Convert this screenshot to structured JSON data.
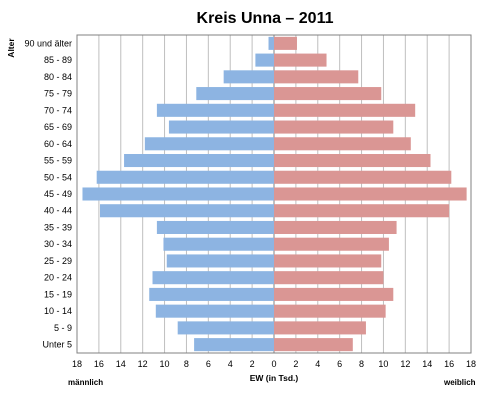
{
  "chart_data": {
    "type": "bar",
    "orientation": "horizontal",
    "subtype": "population-pyramid",
    "title": "Kreis Unna – 2011",
    "ylabel": "Alter",
    "xlabel": "EW (in Tsd.)",
    "left_label": "männlich",
    "right_label": "weiblich",
    "categories": [
      "Unter 5",
      "5 - 9",
      "10 - 14",
      "15 - 19",
      "20 - 24",
      "25 - 29",
      "30 - 34",
      "35 - 39",
      "40 - 44",
      "45 - 49",
      "50 - 54",
      "55 - 59",
      "60 - 64",
      "65 - 69",
      "70 - 74",
      "75 - 79",
      "80 - 84",
      "85 - 89",
      "90 und älter"
    ],
    "x_ticks": [
      "18",
      "16",
      "14",
      "12",
      "10",
      "8",
      "6",
      "4",
      "2",
      "0",
      "2",
      "4",
      "6",
      "8",
      "10",
      "12",
      "14",
      "16",
      "18"
    ],
    "xlim": [
      -18,
      18
    ],
    "grid": true,
    "colors": {
      "male": "#8db4e2",
      "female": "#da9694"
    },
    "series": [
      {
        "values": [
          7.3,
          8.8,
          10.8,
          11.4,
          11.1,
          9.8,
          10.1,
          10.7,
          15.9,
          17.5,
          16.2,
          13.7,
          11.8,
          9.6,
          10.7,
          7.1,
          4.6,
          1.7,
          0.5
        ]
      },
      {
        "values": [
          7.2,
          8.4,
          10.2,
          10.9,
          10.0,
          9.8,
          10.5,
          11.2,
          16.0,
          17.6,
          16.2,
          14.3,
          12.5,
          10.9,
          12.9,
          9.8,
          7.7,
          4.8,
          2.1
        ]
      }
    ]
  }
}
